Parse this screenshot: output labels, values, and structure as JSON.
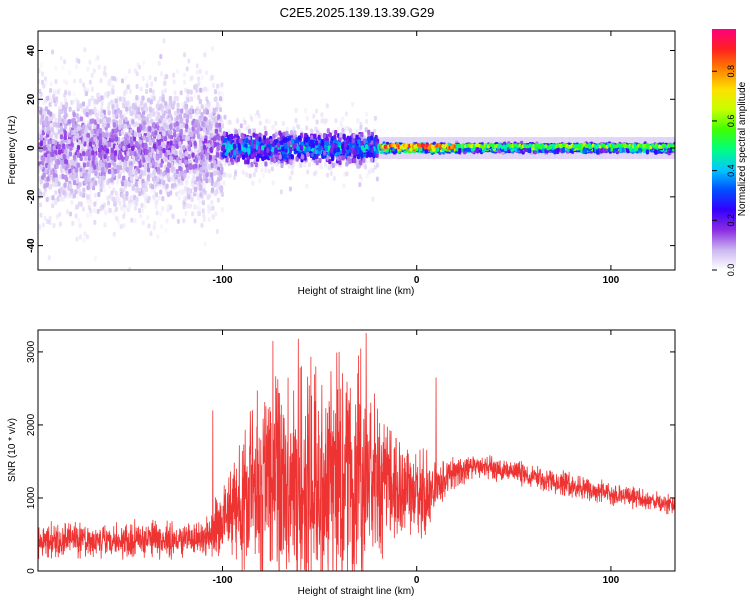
{
  "title": "C2E5.2025.139.13.39.G29",
  "chart_data": [
    {
      "type": "heatmap",
      "xlabel": "Height of straight line (km)",
      "ylabel": "Frequency (Hz)",
      "xlim": [
        -195,
        133
      ],
      "ylim": [
        -50,
        48
      ],
      "xticks": [
        -100,
        0,
        100
      ],
      "yticks": [
        -40,
        -20,
        0,
        20,
        40
      ],
      "grid": false,
      "colorbar": {
        "label": "Normalized spectral amplitude",
        "range": [
          0,
          0.97
        ],
        "ticks": [
          0.0,
          0.2,
          0.4,
          0.6,
          0.8
        ],
        "colormap": [
          "#ffffff",
          "#cbb6f0",
          "#8a2be2",
          "#3300ff",
          "#0050ff",
          "#00c8ff",
          "#00ff80",
          "#40ff00",
          "#c8ff00",
          "#ffe000",
          "#ff8000",
          "#ff2020",
          "#ff0080"
        ]
      },
      "regions": [
        {
          "x": [
            -195,
            -100
          ],
          "freq_spread_hz": 48,
          "peak_amplitude": 0.15
        },
        {
          "x": [
            -100,
            -20
          ],
          "freq_spread_hz": 12,
          "peak_amplitude": 0.45
        },
        {
          "x": [
            -20,
            20
          ],
          "freq_spread_hz": 3,
          "peak_amplitude": 0.85
        },
        {
          "x": [
            20,
            133
          ],
          "freq_spread_hz": 3,
          "peak_amplitude": 0.6
        }
      ]
    },
    {
      "type": "line",
      "xlabel": "Height of straight line (km)",
      "ylabel": "SNR (10 * v/v)",
      "xlim": [
        -195,
        133
      ],
      "ylim": [
        0,
        3300
      ],
      "xticks": [
        -100,
        0,
        100
      ],
      "yticks": [
        0,
        1000,
        2000,
        3000
      ],
      "color": "#ee3333",
      "grid": false,
      "envelope": [
        {
          "x": -195,
          "base": 400,
          "amp": 300
        },
        {
          "x": -110,
          "base": 430,
          "amp": 300
        },
        {
          "x": -100,
          "base": 650,
          "amp": 600
        },
        {
          "x": -90,
          "base": 1000,
          "amp": 1300
        },
        {
          "x": -75,
          "base": 1300,
          "amp": 1800
        },
        {
          "x": -60,
          "base": 1200,
          "amp": 1800
        },
        {
          "x": -40,
          "base": 1200,
          "amp": 1800
        },
        {
          "x": -25,
          "base": 1300,
          "amp": 1800
        },
        {
          "x": -10,
          "base": 1100,
          "amp": 900
        },
        {
          "x": 5,
          "base": 1000,
          "amp": 700
        },
        {
          "x": 15,
          "base": 1300,
          "amp": 300
        },
        {
          "x": 30,
          "base": 1450,
          "amp": 200
        },
        {
          "x": 60,
          "base": 1300,
          "amp": 200
        },
        {
          "x": 100,
          "base": 1050,
          "amp": 180
        },
        {
          "x": 133,
          "base": 900,
          "amp": 150
        }
      ],
      "peaks": [
        {
          "x": -74,
          "y": 3150
        },
        {
          "x": -61,
          "y": 3180
        },
        {
          "x": -40,
          "y": 3000
        },
        {
          "x": -30,
          "y": 2950
        },
        {
          "x": -26,
          "y": 3260
        },
        {
          "x": -52,
          "y": 2800
        },
        {
          "x": -105,
          "y": 2200
        },
        {
          "x": 10,
          "y": 2650
        }
      ]
    }
  ]
}
